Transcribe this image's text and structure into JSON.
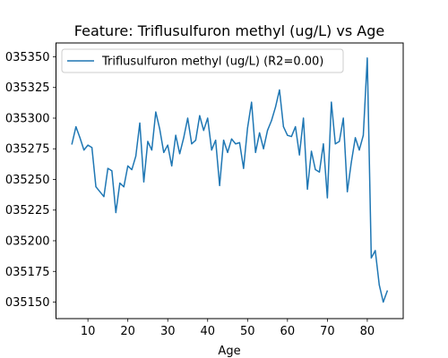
{
  "chart_data": {
    "type": "line",
    "title": "Feature: Triflusulfuron methyl (ug/L) vs Age",
    "xlabel": "Age",
    "ylabel": "",
    "xlim": [
      2,
      89
    ],
    "ylim": [
      1.0351365,
      1.0353613
    ],
    "xticks": [
      10,
      20,
      30,
      40,
      50,
      60,
      70,
      80
    ],
    "xtick_labels": [
      "10",
      "20",
      "30",
      "40",
      "50",
      "60",
      "70",
      "80"
    ],
    "yticks": [
      1.03515,
      1.035175,
      1.0352,
      1.035225,
      1.03525,
      1.035275,
      1.0353,
      1.035325,
      1.03535
    ],
    "ytick_labels": [
      "035150",
      "035175",
      "035200",
      "035225",
      "035250",
      "035275",
      "035300",
      "035325",
      "035350"
    ],
    "grid": false,
    "legend_position": "top-left",
    "series": [
      {
        "name": "Triflusulfuron methyl (ug/L) (R2=0.00)",
        "color": "#1f77b4",
        "x": [
          6,
          7,
          8,
          9,
          10,
          11,
          12,
          13,
          14,
          15,
          16,
          17,
          18,
          19,
          20,
          21,
          22,
          23,
          24,
          25,
          26,
          27,
          28,
          29,
          30,
          31,
          32,
          33,
          34,
          35,
          36,
          37,
          38,
          39,
          40,
          41,
          42,
          43,
          44,
          45,
          46,
          47,
          48,
          49,
          50,
          51,
          52,
          53,
          54,
          55,
          56,
          57,
          58,
          59,
          60,
          61,
          62,
          63,
          64,
          65,
          66,
          67,
          68,
          69,
          70,
          71,
          72,
          73,
          74,
          75,
          76,
          77,
          78,
          79,
          80,
          81,
          82,
          83,
          84,
          85
        ],
        "y": [
          1.035279,
          1.035293,
          1.035284,
          1.035274,
          1.035278,
          1.035276,
          1.035244,
          1.03524,
          1.035236,
          1.035259,
          1.035257,
          1.035223,
          1.035247,
          1.035244,
          1.035261,
          1.035258,
          1.035269,
          1.035296,
          1.035248,
          1.035281,
          1.035274,
          1.035305,
          1.035291,
          1.035272,
          1.035278,
          1.035261,
          1.035286,
          1.035271,
          1.035284,
          1.0353,
          1.035279,
          1.035282,
          1.035302,
          1.03529,
          1.0353,
          1.035274,
          1.035282,
          1.035245,
          1.035282,
          1.035272,
          1.035283,
          1.035279,
          1.03528,
          1.035259,
          1.035292,
          1.035313,
          1.035272,
          1.035288,
          1.035275,
          1.03529,
          1.035298,
          1.035309,
          1.035323,
          1.035293,
          1.035286,
          1.035285,
          1.035293,
          1.03527,
          1.0353,
          1.035242,
          1.035273,
          1.035258,
          1.035256,
          1.035279,
          1.035235,
          1.035313,
          1.035279,
          1.035281,
          1.0353,
          1.03524,
          1.035264,
          1.035284,
          1.035274,
          1.035286,
          1.035349,
          1.035186,
          1.035192,
          1.035164,
          1.03515,
          1.035159
        ]
      }
    ]
  }
}
